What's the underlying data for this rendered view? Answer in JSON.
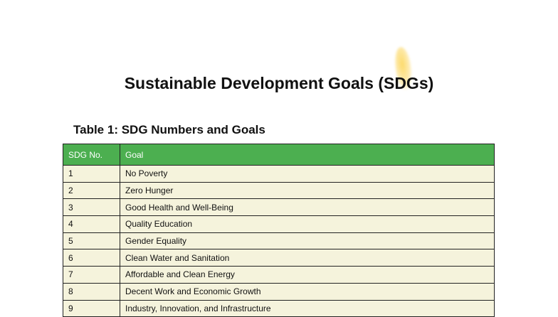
{
  "document": {
    "title": "Sustainable Development Goals (SDGs)",
    "table_caption": "Table 1: SDG Numbers and Goals",
    "table": {
      "headers": [
        "SDG No.",
        "Goal"
      ],
      "rows": [
        [
          "1",
          "No Poverty"
        ],
        [
          "2",
          "Zero Hunger"
        ],
        [
          "3",
          "Good Health and Well-Being"
        ],
        [
          "4",
          "Quality Education"
        ],
        [
          "5",
          "Gender Equality"
        ],
        [
          "6",
          "Clean Water and Sanitation"
        ],
        [
          "7",
          "Affordable and Clean Energy"
        ],
        [
          "8",
          "Decent Work and Economic Growth"
        ],
        [
          "9",
          "Industry, Innovation, and Infrastructure"
        ]
      ]
    },
    "colors": {
      "header_bg": "#4caf50",
      "row_bg": "#f5f3dc"
    }
  }
}
